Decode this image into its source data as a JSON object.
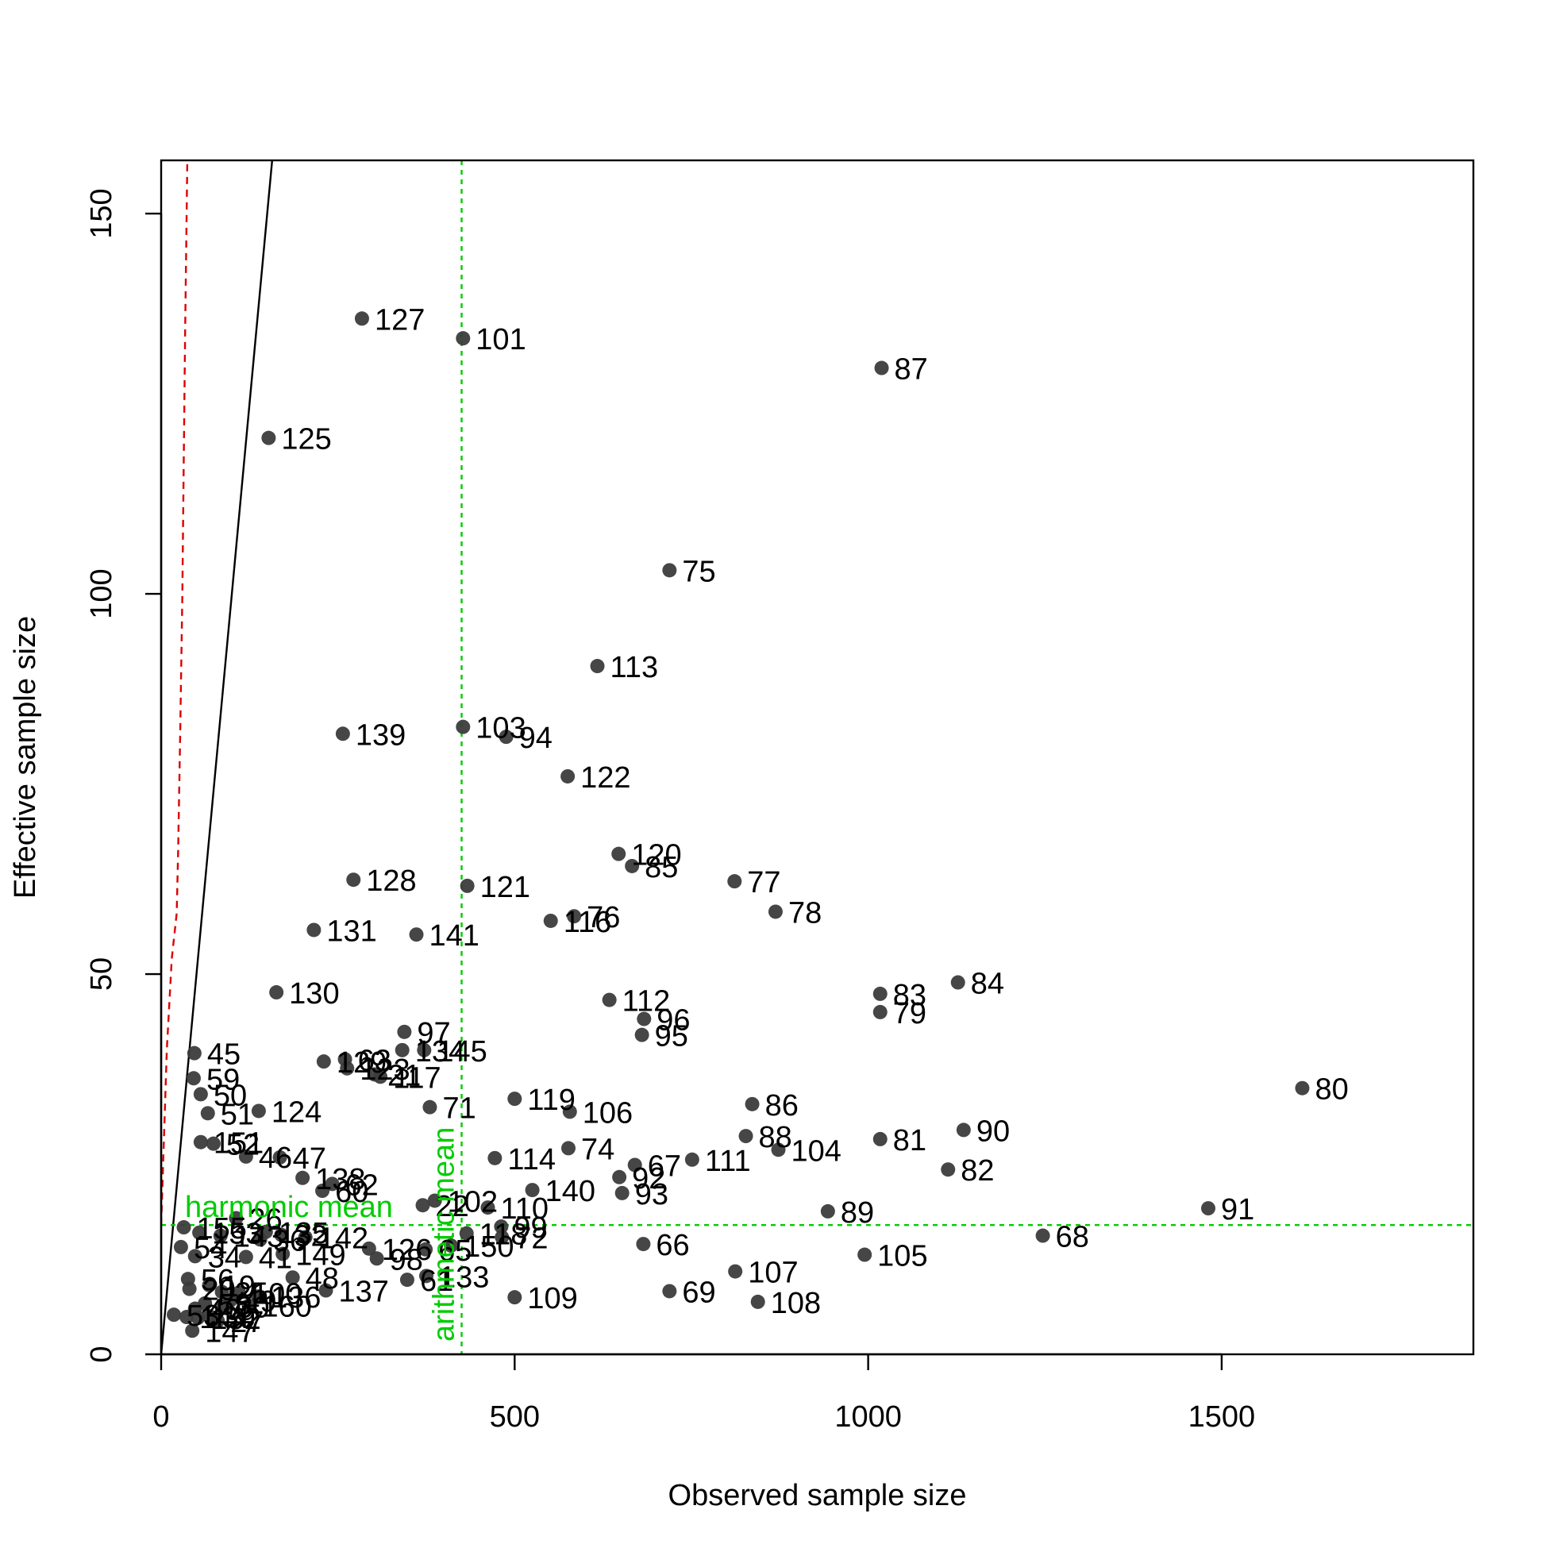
{
  "chart_data": {
    "type": "scatter",
    "title": "",
    "xlabel": "Observed sample size",
    "ylabel": "Effective sample size",
    "xlim": [
      0,
      1856
    ],
    "ylim": [
      0,
      157
    ],
    "xticks": [
      "0",
      "500",
      "1000",
      "1500"
    ],
    "yticks": [
      "0",
      "50",
      "100",
      "150"
    ],
    "grid": false,
    "point_color": "#3c3c3c",
    "identity_line_color": "#000000",
    "dashed_curve_color": "#dd0000",
    "mean_line_color": "#00cc00",
    "harmonic_mean": {
      "label": "harmonic mean",
      "value": 17.0
    },
    "arithmetic_mean": {
      "label": "arithmetic mean",
      "value": 425
    },
    "points": [
      {
        "id": "127",
        "x": 284,
        "y": 136.2
      },
      {
        "id": "101",
        "x": 427,
        "y": 133.6
      },
      {
        "id": "87",
        "x": 1019,
        "y": 129.7
      },
      {
        "id": "125",
        "x": 152,
        "y": 120.5
      },
      {
        "id": "75",
        "x": 719,
        "y": 103.1
      },
      {
        "id": "113",
        "x": 617,
        "y": 90.5
      },
      {
        "id": "139",
        "x": 257,
        "y": 81.6
      },
      {
        "id": "103",
        "x": 427,
        "y": 82.5
      },
      {
        "id": "94",
        "x": 488,
        "y": 81.2
      },
      {
        "id": "122",
        "x": 575,
        "y": 76.0
      },
      {
        "id": "120",
        "x": 647,
        "y": 65.8
      },
      {
        "id": "85",
        "x": 666,
        "y": 64.2
      },
      {
        "id": "77",
        "x": 811,
        "y": 62.2
      },
      {
        "id": "128",
        "x": 272,
        "y": 62.4
      },
      {
        "id": "121",
        "x": 433,
        "y": 61.6
      },
      {
        "id": "78",
        "x": 869,
        "y": 58.2
      },
      {
        "id": "76",
        "x": 584,
        "y": 57.6
      },
      {
        "id": "116",
        "x": 551,
        "y": 57.0
      },
      {
        "id": "131",
        "x": 216,
        "y": 55.8
      },
      {
        "id": "141",
        "x": 361,
        "y": 55.2
      },
      {
        "id": "84",
        "x": 1127,
        "y": 48.9
      },
      {
        "id": "83",
        "x": 1017,
        "y": 47.4
      },
      {
        "id": "130",
        "x": 163,
        "y": 47.6
      },
      {
        "id": "112",
        "x": 634,
        "y": 46.6
      },
      {
        "id": "79",
        "x": 1017,
        "y": 45.0
      },
      {
        "id": "96",
        "x": 683,
        "y": 44.1
      },
      {
        "id": "95",
        "x": 680,
        "y": 42.0
      },
      {
        "id": "97",
        "x": 344,
        "y": 42.4
      },
      {
        "id": "45",
        "x": 47,
        "y": 39.6
      },
      {
        "id": "134",
        "x": 341,
        "y": 40.0
      },
      {
        "id": "145",
        "x": 372,
        "y": 40.0
      },
      {
        "id": "63",
        "x": 260,
        "y": 38.8
      },
      {
        "id": "129",
        "x": 230,
        "y": 38.5
      },
      {
        "id": "123",
        "x": 263,
        "y": 37.6
      },
      {
        "id": "21",
        "x": 302,
        "y": 36.8
      },
      {
        "id": "117",
        "x": 310,
        "y": 36.5
      },
      {
        "id": "59",
        "x": 46,
        "y": 36.3
      },
      {
        "id": "80",
        "x": 1614,
        "y": 35.0
      },
      {
        "id": "50",
        "x": 56,
        "y": 34.2
      },
      {
        "id": "119",
        "x": 500,
        "y": 33.6
      },
      {
        "id": "86",
        "x": 836,
        "y": 32.9
      },
      {
        "id": "71",
        "x": 380,
        "y": 32.5
      },
      {
        "id": "124",
        "x": 138,
        "y": 32.0
      },
      {
        "id": "51",
        "x": 66,
        "y": 31.7
      },
      {
        "id": "106",
        "x": 578,
        "y": 31.9
      },
      {
        "id": "90",
        "x": 1135,
        "y": 29.5
      },
      {
        "id": "88",
        "x": 827,
        "y": 28.7
      },
      {
        "id": "81",
        "x": 1017,
        "y": 28.3
      },
      {
        "id": "151",
        "x": 56,
        "y": 27.9
      },
      {
        "id": "52",
        "x": 74,
        "y": 27.7
      },
      {
        "id": "104",
        "x": 873,
        "y": 26.9
      },
      {
        "id": "74",
        "x": 576,
        "y": 27.1
      },
      {
        "id": "46",
        "x": 120,
        "y": 26.0
      },
      {
        "id": "47",
        "x": 168,
        "y": 25.9
      },
      {
        "id": "114",
        "x": 472,
        "y": 25.8
      },
      {
        "id": "111",
        "x": 751,
        "y": 25.6
      },
      {
        "id": "67",
        "x": 670,
        "y": 24.9
      },
      {
        "id": "82",
        "x": 1113,
        "y": 24.3
      },
      {
        "id": "92",
        "x": 648,
        "y": 23.3
      },
      {
        "id": "138",
        "x": 200,
        "y": 23.2
      },
      {
        "id": "62",
        "x": 242,
        "y": 22.4
      },
      {
        "id": "140",
        "x": 525,
        "y": 21.6
      },
      {
        "id": "93",
        "x": 652,
        "y": 21.2
      },
      {
        "id": "60",
        "x": 228,
        "y": 21.5
      },
      {
        "id": "102",
        "x": 387,
        "y": 20.2
      },
      {
        "id": "22",
        "x": 370,
        "y": 19.6
      },
      {
        "id": "110",
        "x": 462,
        "y": 19.3
      },
      {
        "id": "91",
        "x": 1481,
        "y": 19.2
      },
      {
        "id": "89",
        "x": 943,
        "y": 18.8
      },
      {
        "id": "26",
        "x": 106,
        "y": 17.9
      },
      {
        "id": "155",
        "x": 32,
        "y": 16.7
      },
      {
        "id": "99",
        "x": 481,
        "y": 16.8
      },
      {
        "id": "135",
        "x": 148,
        "y": 16.1
      },
      {
        "id": "118",
        "x": 432,
        "y": 15.9
      },
      {
        "id": "72",
        "x": 482,
        "y": 15.4
      },
      {
        "id": "153",
        "x": 54,
        "y": 16.0
      },
      {
        "id": "143",
        "x": 84,
        "y": 15.6
      },
      {
        "id": "32",
        "x": 170,
        "y": 15.7
      },
      {
        "id": "142",
        "x": 204,
        "y": 15.4
      },
      {
        "id": "68",
        "x": 1247,
        "y": 15.6
      },
      {
        "id": "66",
        "x": 682,
        "y": 14.5
      },
      {
        "id": "36",
        "x": 140,
        "y": 15.1
      },
      {
        "id": "54",
        "x": 28,
        "y": 14.1
      },
      {
        "id": "150",
        "x": 410,
        "y": 14.3
      },
      {
        "id": "126",
        "x": 294,
        "y": 13.9
      },
      {
        "id": "65",
        "x": 374,
        "y": 13.8
      },
      {
        "id": "105",
        "x": 995,
        "y": 13.1
      },
      {
        "id": "34",
        "x": 48,
        "y": 12.9
      },
      {
        "id": "41",
        "x": 120,
        "y": 12.8
      },
      {
        "id": "149",
        "x": 172,
        "y": 13.2
      },
      {
        "id": "98",
        "x": 305,
        "y": 12.6
      },
      {
        "id": "107",
        "x": 812,
        "y": 10.9
      },
      {
        "id": "48",
        "x": 186,
        "y": 10.1
      },
      {
        "id": "61",
        "x": 348,
        "y": 9.8
      },
      {
        "id": "133",
        "x": 375,
        "y": 10.3
      },
      {
        "id": "56",
        "x": 38,
        "y": 9.9
      },
      {
        "id": "19",
        "x": 68,
        "y": 9.1
      },
      {
        "id": "20",
        "x": 40,
        "y": 8.6
      },
      {
        "id": "137",
        "x": 233,
        "y": 8.4
      },
      {
        "id": "25",
        "x": 86,
        "y": 8.2
      },
      {
        "id": "100",
        "x": 110,
        "y": 8.1
      },
      {
        "id": "69",
        "x": 719,
        "y": 8.3
      },
      {
        "id": "136",
        "x": 137,
        "y": 7.6
      },
      {
        "id": "49",
        "x": 98,
        "y": 7.1
      },
      {
        "id": "58",
        "x": 62,
        "y": 6.7
      },
      {
        "id": "109",
        "x": 500,
        "y": 7.5
      },
      {
        "id": "108",
        "x": 844,
        "y": 6.9
      },
      {
        "id": "30",
        "x": 88,
        "y": 6.3
      },
      {
        "id": "40",
        "x": 48,
        "y": 6.0
      },
      {
        "id": "160",
        "x": 124,
        "y": 6.4
      },
      {
        "id": "53",
        "x": 18,
        "y": 5.2
      },
      {
        "id": "39",
        "x": 68,
        "y": 5.0
      },
      {
        "id": "144",
        "x": 36,
        "y": 4.9
      },
      {
        "id": "152",
        "x": 52,
        "y": 4.8
      },
      {
        "id": "27",
        "x": 80,
        "y": 4.4
      },
      {
        "id": "147",
        "x": 44,
        "y": 3.1
      }
    ]
  }
}
